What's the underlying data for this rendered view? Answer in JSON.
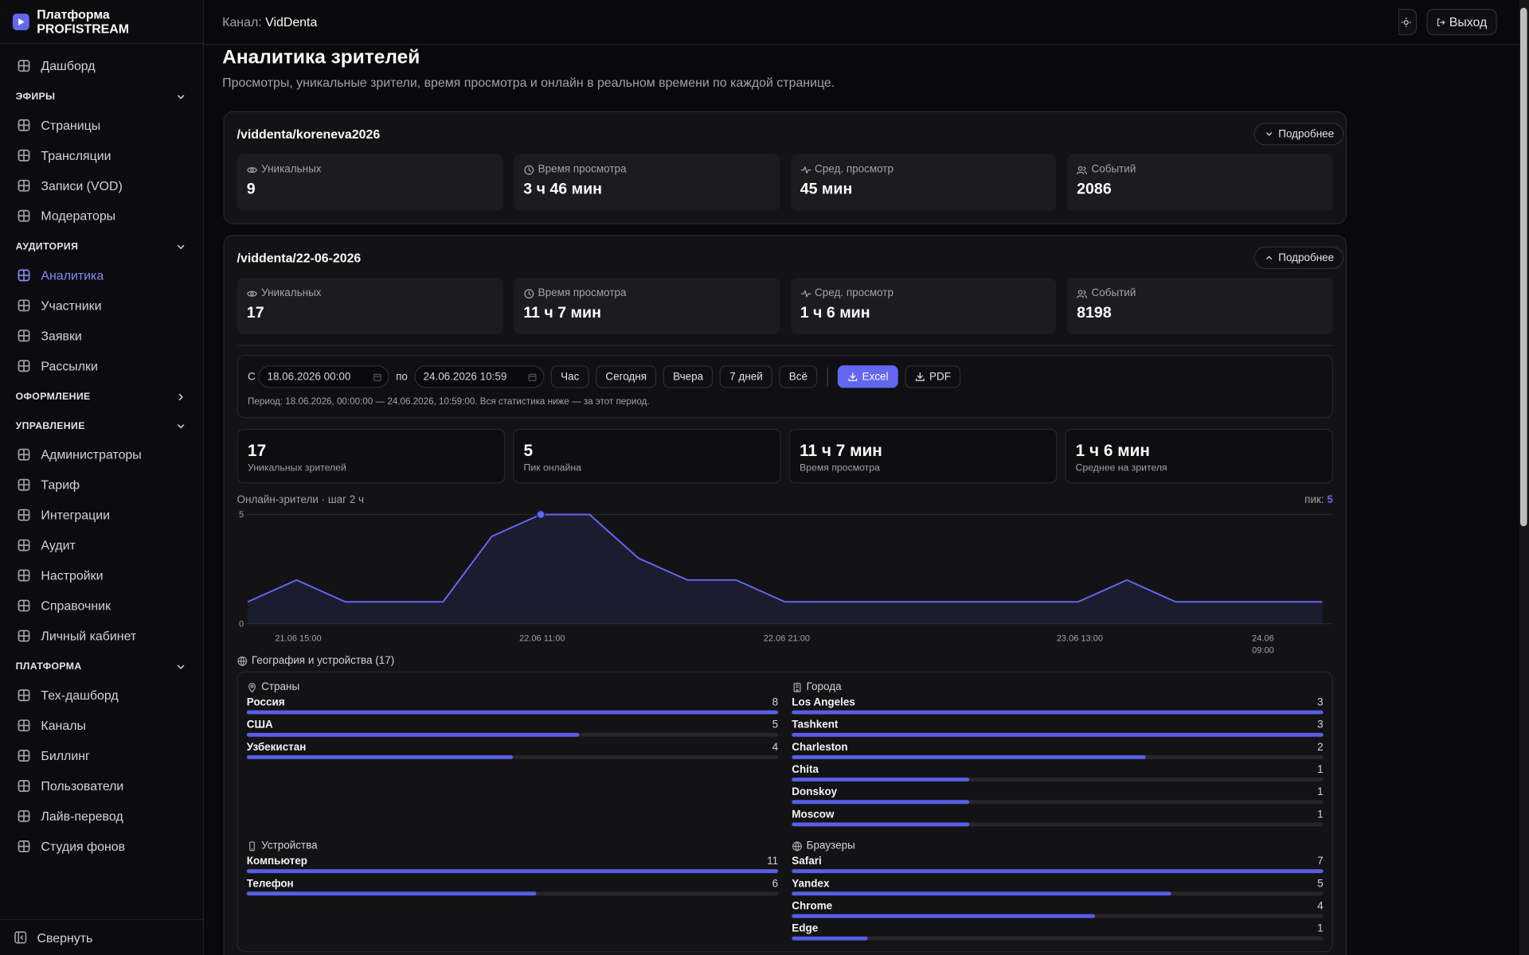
{
  "sidebar": {
    "brand": "Платформа PROFISTREAM",
    "top": [
      {
        "label": "Дашборд"
      }
    ],
    "sections": [
      {
        "title": "ЭФИРЫ",
        "expanded": true,
        "items": [
          {
            "label": "Страницы"
          },
          {
            "label": "Трансляции"
          },
          {
            "label": "Записи (VOD)"
          },
          {
            "label": "Модераторы"
          }
        ]
      },
      {
        "title": "АУДИТОРИЯ",
        "expanded": true,
        "items": [
          {
            "label": "Аналитика",
            "active": true
          },
          {
            "label": "Участники"
          },
          {
            "label": "Заявки"
          },
          {
            "label": "Рассылки"
          }
        ]
      },
      {
        "title": "ОФОРМЛЕНИЕ",
        "expanded": false,
        "items": []
      },
      {
        "title": "УПРАВЛЕНИЕ",
        "expanded": true,
        "items": [
          {
            "label": "Администраторы"
          },
          {
            "label": "Тариф"
          },
          {
            "label": "Интеграции"
          },
          {
            "label": "Аудит"
          },
          {
            "label": "Настройки"
          },
          {
            "label": "Справочник"
          },
          {
            "label": "Личный кабинет"
          }
        ]
      },
      {
        "title": "ПЛАТФОРМА",
        "expanded": true,
        "items": [
          {
            "label": "Тех-дашборд"
          },
          {
            "label": "Каналы"
          },
          {
            "label": "Биллинг"
          },
          {
            "label": "Пользователи"
          },
          {
            "label": "Лайв-перевод"
          },
          {
            "label": "Студия фонов"
          }
        ]
      }
    ],
    "collapse": "Свернуть"
  },
  "header": {
    "channel_label": "Канал:",
    "channel": "VidDenta",
    "logout": "Выход"
  },
  "page": {
    "title": "Аналитика зрителей",
    "subtitle": "Просмотры, уникальные зрители, время просмотра и онлайн в реальном времени по каждой странице."
  },
  "pages": [
    {
      "path": "/viddenta/koreneva2026",
      "details": "Подробнее",
      "expanded": false,
      "stats": [
        {
          "label": "Уникальных",
          "value": 9
        },
        {
          "label": "Время просмотра",
          "value": "3 ч 46 мин"
        },
        {
          "label": "Сред. просмотр",
          "value": "45 мин"
        },
        {
          "label": "Событий",
          "value": 2086
        }
      ]
    },
    {
      "path": "/viddenta/22-06-2026",
      "details": "Подробнее",
      "expanded": true,
      "stats": [
        {
          "label": "Уникальных",
          "value": 17
        },
        {
          "label": "Время просмотра",
          "value": "11 ч 7 мин"
        },
        {
          "label": "Сред. просмотр",
          "value": "1 ч 6 мин"
        },
        {
          "label": "Событий",
          "value": 8198
        }
      ]
    }
  ],
  "filter": {
    "from_label": "С",
    "from": "18.06.2026 00:00",
    "to_label": "по",
    "to": "24.06.2026 10:59",
    "presets": [
      "Час",
      "Сегодня",
      "Вчера",
      "7 дней",
      "Всё"
    ],
    "export": [
      "Excel",
      "PDF"
    ],
    "period": "Период: 18.06.2026, 00:00:00 — 24.06.2026, 10:59:00. Вся статистика ниже — за этот период."
  },
  "summary": [
    {
      "value": 17,
      "label": "Уникальных зрителей"
    },
    {
      "value": 5,
      "label": "Пик онлайна"
    },
    {
      "value": "11 ч 7 мин",
      "label": "Время просмотра"
    },
    {
      "value": "1 ч 6 мин",
      "label": "Среднее на зрителя"
    }
  ],
  "chart_data": {
    "type": "area",
    "title": "Онлайн-зрители · шаг 2 ч",
    "peak_label": "пик:",
    "peak": 5,
    "categories": [
      null,
      "21.06 15:00",
      null,
      null,
      null,
      null,
      "22.06 11:00",
      null,
      null,
      null,
      null,
      "22.06 21:00",
      null,
      null,
      null,
      null,
      null,
      "23.06 13:00",
      null,
      null,
      null,
      "24.06 09:00",
      null
    ],
    "values": [
      1,
      2,
      1,
      1,
      1,
      4,
      5,
      5,
      3,
      2,
      2,
      1,
      1,
      1,
      1,
      1,
      1,
      1,
      2,
      1,
      1,
      1,
      1
    ],
    "color": "#6366f1",
    "ylim": [
      0,
      5
    ],
    "yticks": [
      0,
      5
    ],
    "grid": true
  },
  "geo": {
    "title": "География и устройства (17)",
    "groups": [
      {
        "title": "Страны",
        "items": [
          {
            "name": "Россия",
            "value": 8
          },
          {
            "name": "США",
            "value": 5
          },
          {
            "name": "Узбекистан",
            "value": 4
          }
        ]
      },
      {
        "title": "Города",
        "items": [
          {
            "name": "Los Angeles",
            "value": 3
          },
          {
            "name": "Tashkent",
            "value": 3
          },
          {
            "name": "Charleston",
            "value": 2
          },
          {
            "name": "Chita",
            "value": 1
          },
          {
            "name": "Donskoy",
            "value": 1
          },
          {
            "name": "Moscow",
            "value": 1
          }
        ]
      },
      {
        "title": "Устройства",
        "items": [
          {
            "name": "Компьютер",
            "value": 11
          },
          {
            "name": "Телефон",
            "value": 6
          }
        ]
      },
      {
        "title": "Браузеры",
        "items": [
          {
            "name": "Safari",
            "value": 7
          },
          {
            "name": "Yandex",
            "value": 5
          },
          {
            "name": "Chrome",
            "value": 4
          },
          {
            "name": "Edge",
            "value": 1
          }
        ]
      }
    ]
  }
}
